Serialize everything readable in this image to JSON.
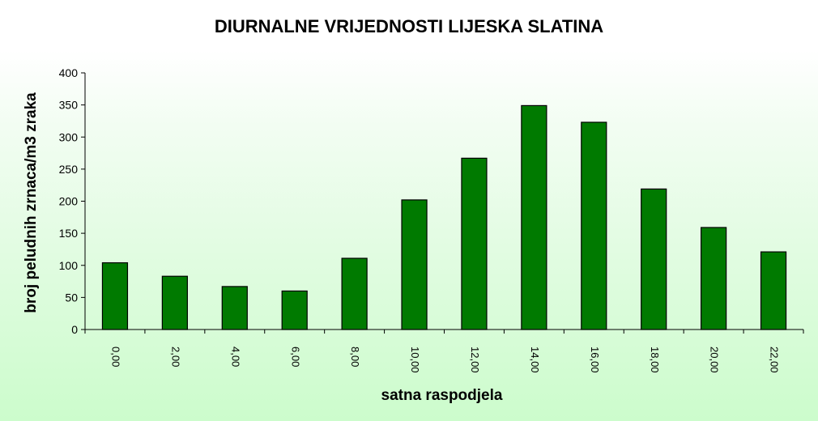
{
  "chart_data": {
    "type": "bar",
    "title": "DIURNALNE VRIJEDNOSTI LIJESKA SLATINA",
    "xlabel": "satna raspodjela",
    "ylabel": "broj peludnih zrnaca/m3 zraka",
    "categories": [
      "0,00",
      "2,00",
      "4,00",
      "6,00",
      "8,00",
      "10,00",
      "12,00",
      "14,00",
      "16,00",
      "18,00",
      "20,00",
      "22,00"
    ],
    "values": [
      104,
      83,
      67,
      60,
      111,
      202,
      267,
      349,
      323,
      219,
      159,
      121
    ],
    "ylim": [
      0,
      400
    ],
    "yticks": [
      0,
      50,
      100,
      150,
      200,
      250,
      300,
      350,
      400
    ],
    "grid": false,
    "legend": "none",
    "bar_color": "#007a00",
    "background": "light green gradient"
  }
}
